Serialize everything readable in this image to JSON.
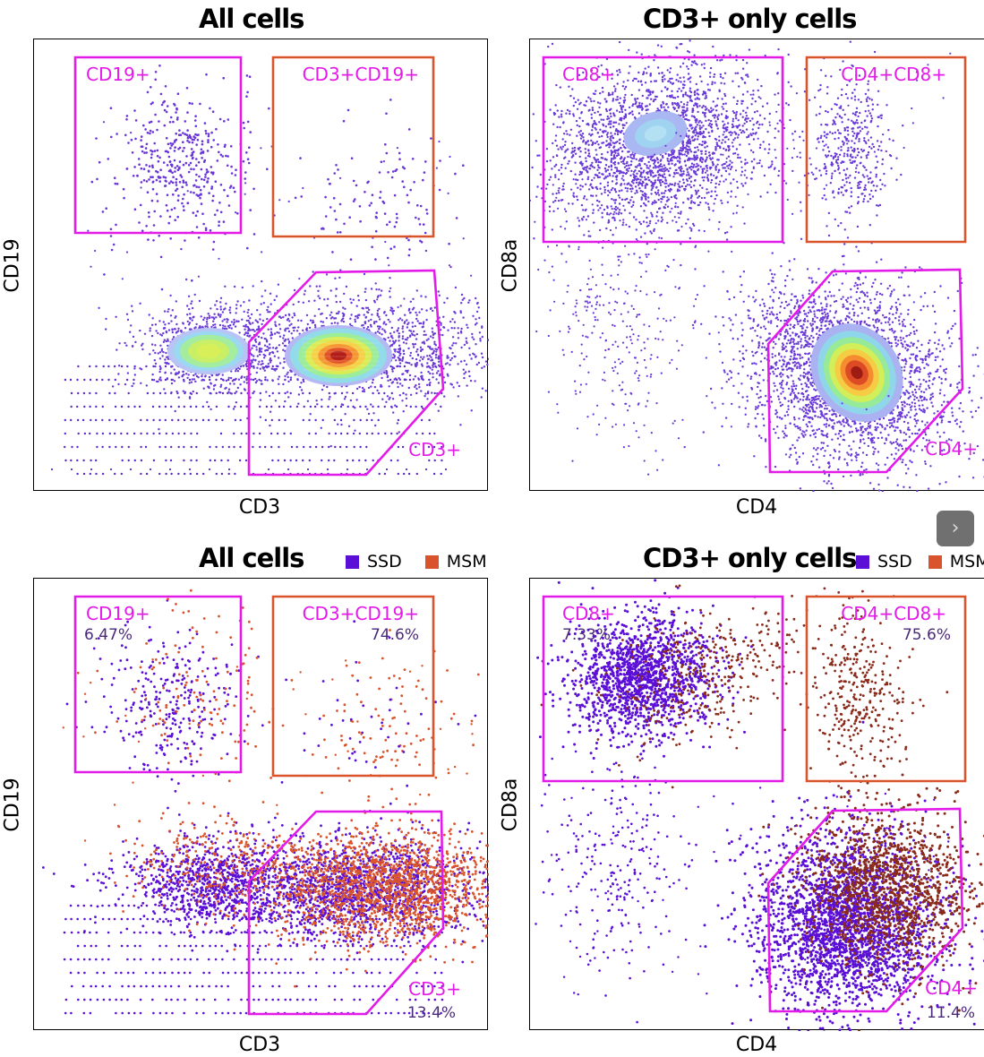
{
  "colors": {
    "gate_magenta": "#e31be8",
    "gate_orange": "#d9542c",
    "ssd": "#5b0fd6",
    "msm": "#d9542c",
    "msm_cd8": "#8a2a1a",
    "dot": "#6a35d8"
  },
  "nav": {
    "icon": "chevron-right-icon",
    "label": "›"
  },
  "chart_data": [
    {
      "type": "scatter",
      "title": "All cells",
      "xlabel": "CD3",
      "ylabel": "CD19",
      "coloring": "density",
      "gates": [
        {
          "label": "CD19+",
          "color": "magenta"
        },
        {
          "label": "CD3+CD19+",
          "color": "orange"
        },
        {
          "label": "CD3+",
          "color": "magenta"
        }
      ],
      "populations": [
        {
          "name": "CD19+ cluster",
          "peak": "green"
        },
        {
          "name": "CD3+ cluster",
          "peak": "red"
        }
      ]
    },
    {
      "type": "scatter",
      "title": "CD3+ only cells",
      "xlabel": "CD4",
      "ylabel": "CD8a",
      "coloring": "density",
      "gates": [
        {
          "label": "CD8+",
          "color": "magenta"
        },
        {
          "label": "CD4+CD8+",
          "color": "orange"
        },
        {
          "label": "CD4+",
          "color": "magenta"
        }
      ],
      "populations": [
        {
          "name": "CD8+ cluster",
          "peak": "light blue"
        },
        {
          "name": "CD4+ cluster",
          "peak": "red"
        }
      ]
    },
    {
      "type": "scatter",
      "title": "All cells",
      "xlabel": "CD3",
      "ylabel": "CD19",
      "coloring": "group",
      "legend": [
        {
          "name": "SSD",
          "color": "#5b0fd6"
        },
        {
          "name": "MSM",
          "color": "#d9542c"
        }
      ],
      "gates": [
        {
          "label": "CD19+",
          "percent": "6.47%",
          "color": "magenta"
        },
        {
          "label": "CD3+CD19+",
          "percent": "74.6%",
          "color": "orange"
        },
        {
          "label": "CD3+",
          "percent": "13.4%",
          "color": "magenta"
        }
      ]
    },
    {
      "type": "scatter",
      "title": "CD3+ only cells",
      "xlabel": "CD4",
      "ylabel": "CD8a",
      "coloring": "group",
      "legend": [
        {
          "name": "SSD",
          "color": "#5b0fd6"
        },
        {
          "name": "MSM",
          "color": "#d9542c"
        }
      ],
      "gates": [
        {
          "label": "CD8+",
          "percent": "7.33%",
          "color": "magenta"
        },
        {
          "label": "CD4+CD8+",
          "percent": "75.6%",
          "color": "orange"
        },
        {
          "label": "CD4+",
          "percent": "11.4%",
          "color": "magenta"
        }
      ]
    }
  ]
}
